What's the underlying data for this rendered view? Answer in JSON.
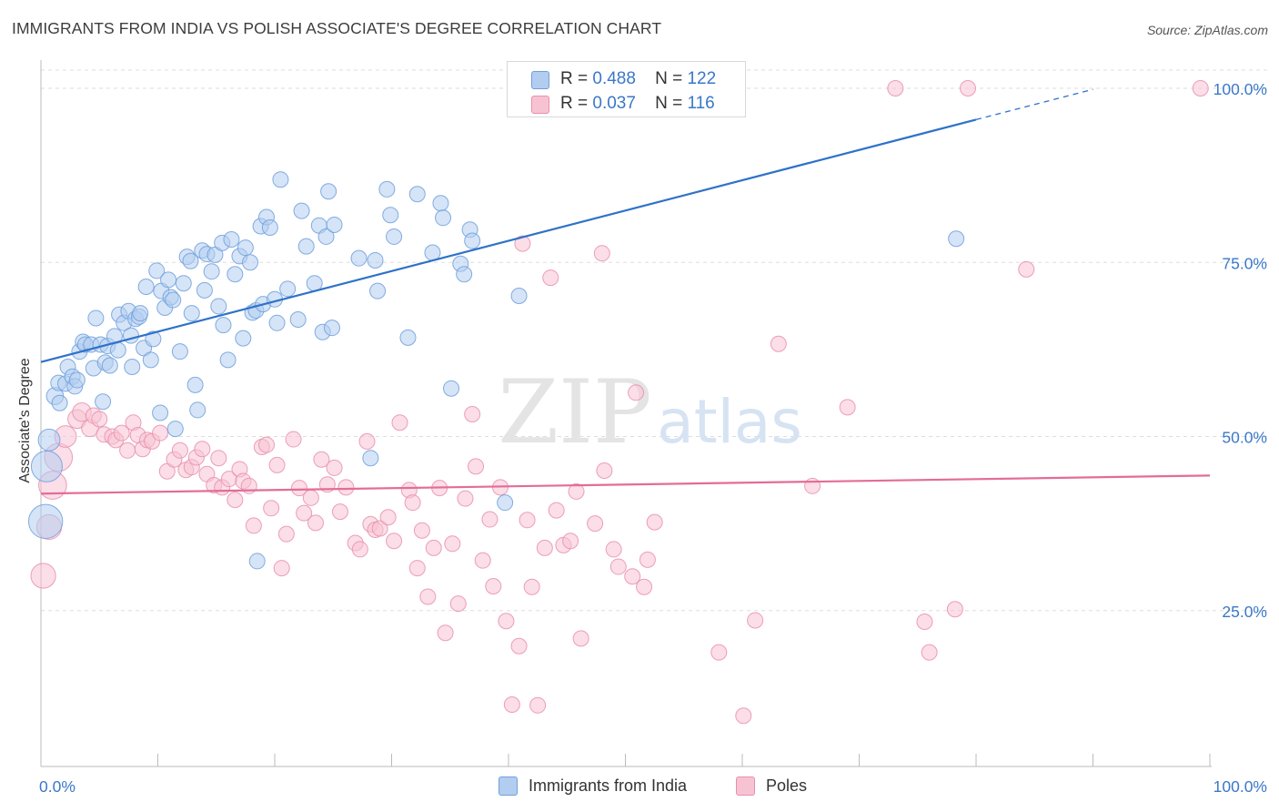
{
  "header": {
    "title": "IMMIGRANTS FROM INDIA VS POLISH ASSOCIATE'S DEGREE CORRELATION CHART",
    "source": "Source: ZipAtlas.com"
  },
  "watermark": {
    "zip": "ZIP",
    "atlas": "atlas"
  },
  "legend_top": {
    "rows": [
      {
        "r_label": "R =",
        "r_value": "0.488",
        "n_label": "N =",
        "n_value": "122"
      },
      {
        "r_label": "R =",
        "r_value": "0.037",
        "n_label": "N =",
        "n_value": "116"
      }
    ]
  },
  "legend_bottom": {
    "items": [
      {
        "label": "Immigrants from India"
      },
      {
        "label": "Poles"
      }
    ]
  },
  "colors": {
    "blue_fill": "#b3cdf0",
    "blue_stroke": "#6f9fdc",
    "blue_line": "#2f72c8",
    "pink_fill": "#f7c3d3",
    "pink_stroke": "#e98fad",
    "pink_line": "#e36c98",
    "tick_label": "#3a78c8",
    "grid": "#dddddd"
  },
  "chart_data": {
    "type": "scatter",
    "title": "IMMIGRANTS FROM INDIA VS POLISH ASSOCIATE'S DEGREE CORRELATION CHART",
    "xlabel": "",
    "ylabel": "Associate's Degree",
    "xlim": [
      0,
      100
    ],
    "ylim": [
      0,
      102
    ],
    "x_tick_labels": [
      "0.0%",
      "100.0%"
    ],
    "y_ticks": [
      25,
      50,
      75,
      100
    ],
    "y_tick_labels": [
      "25.0%",
      "50.0%",
      "75.0%",
      "100.0%"
    ],
    "grid": "horizontal dashed",
    "legend_position": "top-center",
    "series": [
      {
        "name": "Immigrants from India",
        "color": "#6f9fdc",
        "r": 0.488,
        "n": 122,
        "trend": {
          "x": [
            0,
            80
          ],
          "y": [
            60.7,
            95.5
          ],
          "dashed_extension_to": [
            90,
            100
          ]
        },
        "points": [
          [
            0.4,
            37.8,
            2.2
          ],
          [
            0.5,
            45.7,
            2.0
          ],
          [
            0.7,
            49.5,
            1.4
          ],
          [
            1.2,
            55.8,
            1.1
          ],
          [
            1.5,
            57.7,
            1.0
          ],
          [
            1.6,
            54.8,
            1.0
          ],
          [
            2.1,
            57.6,
            1.0
          ],
          [
            2.3,
            60.0,
            1.0
          ],
          [
            2.7,
            58.6,
            1.0
          ],
          [
            2.9,
            57.2,
            1.0
          ],
          [
            3.1,
            58.1,
            1.0
          ],
          [
            3.3,
            62.2,
            1.0
          ],
          [
            3.6,
            63.6,
            1.0
          ],
          [
            3.8,
            63.2,
            1.0
          ],
          [
            4.3,
            63.2,
            1.0
          ],
          [
            4.5,
            59.8,
            1.0
          ],
          [
            4.7,
            67.0,
            1.0
          ],
          [
            5.1,
            63.2,
            1.0
          ],
          [
            5.5,
            60.6,
            1.0
          ],
          [
            5.3,
            55.0,
            1.0
          ],
          [
            5.7,
            63.0,
            1.0
          ],
          [
            5.9,
            60.2,
            1.0
          ],
          [
            6.3,
            64.4,
            1.0
          ],
          [
            6.6,
            62.4,
            1.0
          ],
          [
            6.7,
            67.5,
            1.0
          ],
          [
            7.1,
            66.3,
            1.0
          ],
          [
            7.5,
            68.0,
            1.0
          ],
          [
            7.7,
            64.5,
            1.0
          ],
          [
            7.8,
            60.0,
            1.0
          ],
          [
            8.1,
            66.9,
            1.0
          ],
          [
            8.4,
            67.2,
            1.0
          ],
          [
            8.5,
            67.7,
            1.0
          ],
          [
            8.8,
            62.7,
            1.0
          ],
          [
            9.0,
            71.5,
            1.0
          ],
          [
            9.4,
            61.0,
            1.0
          ],
          [
            9.6,
            64.0,
            1.0
          ],
          [
            9.9,
            73.8,
            1.0
          ],
          [
            10.2,
            53.4,
            1.0
          ],
          [
            10.3,
            70.9,
            1.0
          ],
          [
            10.6,
            68.5,
            1.0
          ],
          [
            10.9,
            72.5,
            1.0
          ],
          [
            11.1,
            70.0,
            1.0
          ],
          [
            11.3,
            69.6,
            1.0
          ],
          [
            11.5,
            51.1,
            1.0
          ],
          [
            11.9,
            62.2,
            1.0
          ],
          [
            12.2,
            72.0,
            1.0
          ],
          [
            12.5,
            75.8,
            1.0
          ],
          [
            12.8,
            75.2,
            1.0
          ],
          [
            12.9,
            67.7,
            1.0
          ],
          [
            13.2,
            57.4,
            1.0
          ],
          [
            13.4,
            53.8,
            1.0
          ],
          [
            13.8,
            76.7,
            1.0
          ],
          [
            14.0,
            71.0,
            1.0
          ],
          [
            14.2,
            76.2,
            1.0
          ],
          [
            14.6,
            73.7,
            1.0
          ],
          [
            14.9,
            76.1,
            1.0
          ],
          [
            15.2,
            68.7,
            1.0
          ],
          [
            15.5,
            77.8,
            1.0
          ],
          [
            15.6,
            66.0,
            1.0
          ],
          [
            16.0,
            61.0,
            1.0
          ],
          [
            16.3,
            78.3,
            1.0
          ],
          [
            16.6,
            73.3,
            1.0
          ],
          [
            17.0,
            75.9,
            1.0
          ],
          [
            17.3,
            64.1,
            1.0
          ],
          [
            17.5,
            77.1,
            1.0
          ],
          [
            17.9,
            75.0,
            1.0
          ],
          [
            18.1,
            67.8,
            1.0
          ],
          [
            18.4,
            68.1,
            1.0
          ],
          [
            18.5,
            32.1,
            1.0
          ],
          [
            18.8,
            80.2,
            1.0
          ],
          [
            19.0,
            69.0,
            1.0
          ],
          [
            19.3,
            81.5,
            1.0
          ],
          [
            19.6,
            80.0,
            1.0
          ],
          [
            20.0,
            69.7,
            1.0
          ],
          [
            20.2,
            66.3,
            1.0
          ],
          [
            20.5,
            86.9,
            1.0
          ],
          [
            21.1,
            71.2,
            1.0
          ],
          [
            22.0,
            66.8,
            1.0
          ],
          [
            22.3,
            82.4,
            1.0
          ],
          [
            22.7,
            77.3,
            1.0
          ],
          [
            23.4,
            72.0,
            1.0
          ],
          [
            23.8,
            80.3,
            1.0
          ],
          [
            24.1,
            65.0,
            1.0
          ],
          [
            24.4,
            78.7,
            1.0
          ],
          [
            24.9,
            65.6,
            1.0
          ],
          [
            24.6,
            85.2,
            1.0
          ],
          [
            25.1,
            80.4,
            1.0
          ],
          [
            27.2,
            75.6,
            1.0
          ],
          [
            28.6,
            75.3,
            1.0
          ],
          [
            28.8,
            70.9,
            1.0
          ],
          [
            28.2,
            46.9,
            1.0
          ],
          [
            29.6,
            85.5,
            1.0
          ],
          [
            29.9,
            81.8,
            1.0
          ],
          [
            30.2,
            78.7,
            1.0
          ],
          [
            31.4,
            64.2,
            1.0
          ],
          [
            32.2,
            84.8,
            1.0
          ],
          [
            33.5,
            76.4,
            1.0
          ],
          [
            34.2,
            83.5,
            1.0
          ],
          [
            34.4,
            81.4,
            1.0
          ],
          [
            35.1,
            56.9,
            1.0
          ],
          [
            35.9,
            74.8,
            1.0
          ],
          [
            36.2,
            73.3,
            1.0
          ],
          [
            36.7,
            79.7,
            1.0
          ],
          [
            36.9,
            78.1,
            1.0
          ],
          [
            39.7,
            40.5,
            1.0
          ],
          [
            40.9,
            70.2,
            1.0
          ],
          [
            78.3,
            78.4,
            1.0
          ]
        ]
      },
      {
        "name": "Poles",
        "color": "#e98fad",
        "r": 0.037,
        "n": 116,
        "trend": {
          "x": [
            0,
            100
          ],
          "y": [
            41.8,
            44.4
          ]
        },
        "points": [
          [
            0.2,
            30.0,
            1.6
          ],
          [
            0.7,
            37.0,
            1.6
          ],
          [
            1.0,
            43.0,
            1.8
          ],
          [
            1.5,
            47.0,
            1.8
          ],
          [
            2.1,
            50.0,
            1.4
          ],
          [
            3.1,
            52.5,
            1.2
          ],
          [
            3.5,
            53.5,
            1.2
          ],
          [
            4.2,
            51.2,
            1.1
          ],
          [
            4.5,
            53.0,
            1.0
          ],
          [
            5.0,
            52.5,
            1.0
          ],
          [
            5.4,
            50.3,
            1.0
          ],
          [
            6.1,
            50.0,
            1.0
          ],
          [
            6.4,
            49.5,
            1.0
          ],
          [
            6.9,
            50.5,
            1.0
          ],
          [
            7.4,
            48.0,
            1.0
          ],
          [
            7.9,
            52.0,
            1.0
          ],
          [
            8.3,
            50.2,
            1.0
          ],
          [
            8.7,
            48.2,
            1.0
          ],
          [
            9.1,
            49.5,
            1.0
          ],
          [
            9.5,
            49.3,
            1.0
          ],
          [
            10.2,
            50.5,
            1.0
          ],
          [
            10.8,
            45.0,
            1.0
          ],
          [
            11.4,
            46.7,
            1.0
          ],
          [
            11.9,
            48.0,
            1.0
          ],
          [
            12.4,
            45.2,
            1.0
          ],
          [
            12.9,
            45.6,
            1.0
          ],
          [
            13.3,
            47.0,
            1.0
          ],
          [
            13.8,
            48.2,
            1.0
          ],
          [
            14.2,
            44.6,
            1.0
          ],
          [
            14.8,
            43.0,
            1.0
          ],
          [
            15.2,
            46.9,
            1.0
          ],
          [
            15.5,
            42.7,
            1.0
          ],
          [
            16.1,
            43.9,
            1.0
          ],
          [
            16.6,
            40.9,
            1.0
          ],
          [
            17.0,
            45.3,
            1.0
          ],
          [
            17.3,
            43.6,
            1.0
          ],
          [
            17.8,
            42.9,
            1.0
          ],
          [
            18.2,
            37.2,
            1.0
          ],
          [
            18.9,
            48.5,
            1.0
          ],
          [
            19.3,
            48.8,
            1.0
          ],
          [
            19.7,
            39.7,
            1.0
          ],
          [
            20.2,
            45.9,
            1.0
          ],
          [
            20.6,
            31.1,
            1.0
          ],
          [
            21.0,
            36.0,
            1.0
          ],
          [
            21.6,
            49.6,
            1.0
          ],
          [
            22.1,
            42.6,
            1.0
          ],
          [
            22.5,
            39.0,
            1.0
          ],
          [
            23.1,
            41.2,
            1.0
          ],
          [
            23.5,
            37.6,
            1.0
          ],
          [
            24.0,
            46.7,
            1.0
          ],
          [
            24.5,
            43.1,
            1.0
          ],
          [
            25.1,
            45.5,
            1.0
          ],
          [
            25.6,
            39.2,
            1.0
          ],
          [
            26.1,
            42.7,
            1.0
          ],
          [
            26.9,
            34.7,
            1.0
          ],
          [
            27.3,
            33.8,
            1.0
          ],
          [
            27.9,
            49.3,
            1.0
          ],
          [
            28.2,
            37.4,
            1.0
          ],
          [
            28.6,
            36.6,
            1.0
          ],
          [
            29.0,
            36.8,
            1.0
          ],
          [
            29.7,
            38.4,
            1.0
          ],
          [
            30.2,
            35.0,
            1.0
          ],
          [
            30.7,
            52.0,
            1.0
          ],
          [
            31.5,
            42.3,
            1.0
          ],
          [
            31.8,
            40.5,
            1.0
          ],
          [
            32.2,
            31.1,
            1.0
          ],
          [
            32.6,
            36.5,
            1.0
          ],
          [
            33.1,
            27.0,
            1.0
          ],
          [
            33.6,
            34.0,
            1.0
          ],
          [
            34.1,
            42.6,
            1.0
          ],
          [
            34.6,
            21.8,
            1.0
          ],
          [
            35.2,
            34.6,
            1.0
          ],
          [
            35.7,
            26.0,
            1.0
          ],
          [
            36.3,
            41.1,
            1.0
          ],
          [
            36.9,
            53.2,
            1.0
          ],
          [
            37.2,
            45.7,
            1.0
          ],
          [
            37.8,
            32.2,
            1.0
          ],
          [
            38.4,
            38.1,
            1.0
          ],
          [
            38.7,
            28.5,
            1.0
          ],
          [
            39.3,
            42.7,
            1.0
          ],
          [
            39.8,
            23.5,
            1.0
          ],
          [
            40.3,
            11.5,
            1.0
          ],
          [
            40.9,
            19.9,
            1.0
          ],
          [
            41.2,
            77.7,
            1.0
          ],
          [
            41.6,
            38.0,
            1.0
          ],
          [
            42.0,
            28.4,
            1.0
          ],
          [
            42.5,
            11.4,
            1.0
          ],
          [
            43.1,
            34.0,
            1.0
          ],
          [
            43.6,
            72.8,
            1.0
          ],
          [
            44.1,
            39.4,
            1.0
          ],
          [
            44.7,
            34.4,
            1.0
          ],
          [
            45.3,
            35.0,
            1.0
          ],
          [
            45.8,
            42.1,
            1.0
          ],
          [
            46.2,
            21.0,
            1.0
          ],
          [
            47.4,
            37.5,
            1.0
          ],
          [
            48.0,
            76.3,
            1.0
          ],
          [
            48.2,
            45.1,
            1.0
          ],
          [
            49.0,
            33.8,
            1.0
          ],
          [
            49.4,
            31.3,
            1.0
          ],
          [
            50.6,
            29.9,
            1.0
          ],
          [
            50.9,
            56.3,
            1.0
          ],
          [
            51.6,
            28.4,
            1.0
          ],
          [
            51.9,
            32.3,
            1.0
          ],
          [
            52.5,
            37.7,
            1.0
          ],
          [
            58.0,
            19.0,
            1.0
          ],
          [
            60.1,
            9.9,
            1.0
          ],
          [
            61.1,
            23.6,
            1.0
          ],
          [
            63.1,
            63.3,
            1.0
          ],
          [
            66.0,
            42.9,
            1.0
          ],
          [
            69.0,
            54.2,
            1.0
          ],
          [
            73.1,
            100.0,
            1.0
          ],
          [
            75.6,
            23.4,
            1.0
          ],
          [
            76.0,
            19.0,
            1.0
          ],
          [
            78.2,
            25.2,
            1.0
          ],
          [
            79.3,
            100.0,
            1.0
          ],
          [
            84.3,
            74.0,
            1.0
          ],
          [
            99.2,
            100.0,
            1.0
          ]
        ]
      }
    ]
  }
}
